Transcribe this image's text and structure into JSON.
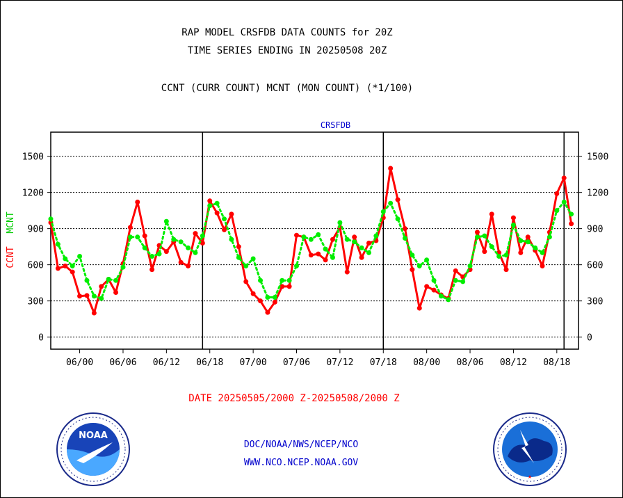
{
  "header": {
    "line1": "RAP MODEL CRSFDB DATA COUNTS for 20Z",
    "line2": "TIME SERIES ENDING IN 20250508 20Z",
    "line3": "CCNT (CURR COUNT) MCNT (MON COUNT) (*1/100)"
  },
  "footer": {
    "date_range": "DATE 20250505/2000 Z-20250508/2000 Z",
    "org": "DOC/NOAA/NWS/NCEP/NCO",
    "url": "WWW.NCO.NCEP.NOAA.GOV"
  },
  "logos": {
    "left": "noaa-logo",
    "right": "nws-logo"
  },
  "chart_data": {
    "type": "line",
    "title": "CRSFDB",
    "ylabel_left": [
      "CCNT",
      "MCNT"
    ],
    "ylim": [
      -100,
      1700
    ],
    "yticks": [
      0,
      300,
      600,
      900,
      1200,
      1500
    ],
    "xlim": [
      -4,
      69
    ],
    "xticks": [
      {
        "x": 0,
        "label": "06/00"
      },
      {
        "x": 6,
        "label": "06/06"
      },
      {
        "x": 12,
        "label": "06/12"
      },
      {
        "x": 18,
        "label": "06/18"
      },
      {
        "x": 24,
        "label": "07/00"
      },
      {
        "x": 30,
        "label": "07/06"
      },
      {
        "x": 36,
        "label": "07/12"
      },
      {
        "x": 42,
        "label": "07/18"
      },
      {
        "x": 48,
        "label": "08/00"
      },
      {
        "x": 54,
        "label": "08/06"
      },
      {
        "x": 60,
        "label": "08/12"
      },
      {
        "x": 66,
        "label": "08/18"
      }
    ],
    "day_boundaries": [
      17,
      42,
      67
    ],
    "grid": true,
    "series": [
      {
        "name": "CCNT",
        "color": "#ff0000",
        "style": "solid",
        "x": [
          -4,
          -3,
          -2,
          -1,
          0,
          1,
          2,
          3,
          4,
          5,
          6,
          7,
          8,
          9,
          10,
          11,
          12,
          13,
          14,
          15,
          16,
          17,
          18,
          19,
          20,
          21,
          22,
          23,
          24,
          25,
          26,
          27,
          28,
          29,
          30,
          31,
          32,
          33,
          34,
          35,
          36,
          37,
          38,
          39,
          40,
          41,
          42,
          43,
          44,
          45,
          46,
          47,
          48,
          49,
          50,
          51,
          52,
          53,
          54,
          55,
          56,
          57,
          58,
          59,
          60,
          61,
          62,
          63,
          64,
          65,
          66,
          67,
          68
        ],
        "values": [
          950,
          570,
          590,
          540,
          340,
          345,
          200,
          420,
          480,
          370,
          610,
          910,
          1120,
          840,
          560,
          760,
          710,
          790,
          620,
          590,
          860,
          780,
          1130,
          1030,
          890,
          1020,
          750,
          460,
          360,
          300,
          205,
          290,
          420,
          420,
          845,
          830,
          680,
          690,
          640,
          810,
          910,
          540,
          830,
          660,
          780,
          800,
          990,
          1400,
          1140,
          900,
          560,
          240,
          420,
          390,
          350,
          320,
          550,
          500,
          560,
          870,
          710,
          1020,
          700,
          560,
          990,
          700,
          830,
          720,
          590,
          870,
          1190,
          1320,
          940
        ]
      },
      {
        "name": "MCNT",
        "color": "#00ee00",
        "style": "dotted",
        "x": [
          -4,
          -3,
          -2,
          -1,
          0,
          1,
          2,
          3,
          4,
          5,
          6,
          7,
          8,
          9,
          10,
          11,
          12,
          13,
          14,
          15,
          16,
          17,
          18,
          19,
          20,
          21,
          22,
          23,
          24,
          25,
          26,
          27,
          28,
          29,
          30,
          31,
          32,
          33,
          34,
          35,
          36,
          37,
          38,
          39,
          40,
          41,
          42,
          43,
          44,
          45,
          46,
          47,
          48,
          49,
          50,
          51,
          52,
          53,
          54,
          55,
          56,
          57,
          58,
          59,
          60,
          61,
          62,
          63,
          64,
          65,
          66,
          67,
          68
        ],
        "values": [
          980,
          770,
          650,
          590,
          670,
          470,
          340,
          320,
          480,
          470,
          580,
          830,
          830,
          740,
          670,
          690,
          960,
          810,
          790,
          740,
          700,
          840,
          1090,
          1110,
          980,
          810,
          660,
          590,
          650,
          470,
          330,
          330,
          470,
          470,
          590,
          830,
          810,
          850,
          730,
          660,
          950,
          810,
          790,
          740,
          700,
          840,
          1040,
          1110,
          980,
          820,
          680,
          590,
          640,
          470,
          340,
          310,
          470,
          460,
          590,
          830,
          840,
          750,
          670,
          680,
          930,
          800,
          790,
          740,
          700,
          830,
          1050,
          1120,
          1020
        ]
      }
    ]
  }
}
